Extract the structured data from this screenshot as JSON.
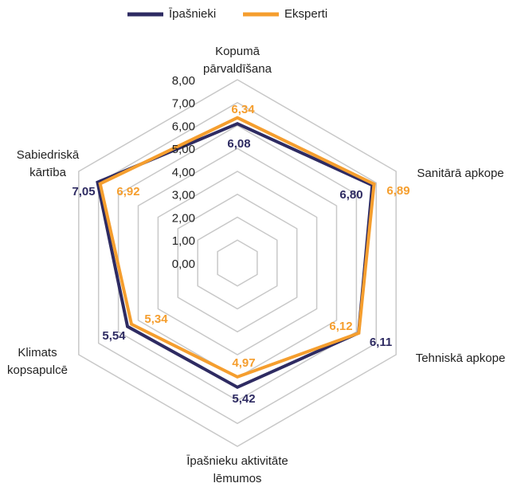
{
  "chart_data": {
    "type": "radar",
    "categories": [
      [
        "Kopumā",
        "pārvaldīšana"
      ],
      [
        "Sanitārā apkope"
      ],
      [
        "Tehniskā apkope"
      ],
      [
        "Īpašnieku aktivitāte",
        "lēmumos"
      ],
      [
        "Klimats",
        "kopsapulcē"
      ],
      [
        "Sabiedriskā",
        "kārtība"
      ]
    ],
    "series": [
      {
        "name": "Īpašnieki",
        "color": "#2e2b62",
        "values": [
          6.08,
          6.8,
          6.11,
          5.42,
          5.54,
          7.05
        ],
        "value_labels": [
          "6,08",
          "6,80",
          "6,11",
          "5,42",
          "5,54",
          "7,05"
        ]
      },
      {
        "name": "Eksperti",
        "color": "#f59e2e",
        "values": [
          6.34,
          6.89,
          6.12,
          4.97,
          5.34,
          6.92
        ],
        "value_labels": [
          "6,34",
          "6,89",
          "6,12",
          "4,97",
          "5,34",
          "6,92"
        ]
      }
    ],
    "ylim": [
      0,
      8
    ],
    "yticks": [
      {
        "value": 0,
        "label": "0,00"
      },
      {
        "value": 1,
        "label": "1,00"
      },
      {
        "value": 2,
        "label": "2,00"
      },
      {
        "value": 3,
        "label": "3,00"
      },
      {
        "value": 4,
        "label": "4,00"
      },
      {
        "value": 5,
        "label": "5,00"
      },
      {
        "value": 6,
        "label": "6,00"
      },
      {
        "value": 7,
        "label": "7,00"
      },
      {
        "value": 8,
        "label": "8,00"
      }
    ],
    "grid": true,
    "legend": "top"
  }
}
